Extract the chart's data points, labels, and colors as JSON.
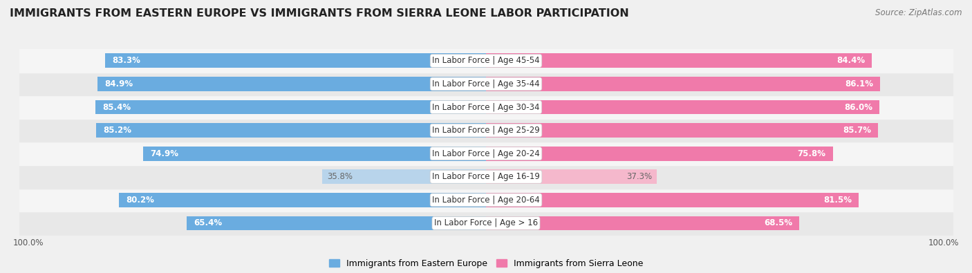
{
  "title": "IMMIGRANTS FROM EASTERN EUROPE VS IMMIGRANTS FROM SIERRA LEONE LABOR PARTICIPATION",
  "source": "Source: ZipAtlas.com",
  "categories": [
    "In Labor Force | Age > 16",
    "In Labor Force | Age 20-64",
    "In Labor Force | Age 16-19",
    "In Labor Force | Age 20-24",
    "In Labor Force | Age 25-29",
    "In Labor Force | Age 30-34",
    "In Labor Force | Age 35-44",
    "In Labor Force | Age 45-54"
  ],
  "eastern_europe": [
    65.4,
    80.2,
    35.8,
    74.9,
    85.2,
    85.4,
    84.9,
    83.3
  ],
  "sierra_leone": [
    68.5,
    81.5,
    37.3,
    75.8,
    85.7,
    86.0,
    86.1,
    84.4
  ],
  "eastern_europe_color": "#6aace0",
  "eastern_europe_color_light": "#b8d4eb",
  "sierra_leone_color": "#f07aaa",
  "sierra_leone_color_light": "#f5b8cc",
  "background_color": "#f0f0f0",
  "row_bg_colors": [
    "#e8e8e8",
    "#f5f5f5"
  ],
  "max_value": 100.0,
  "title_fontsize": 11.5,
  "label_fontsize": 8.5,
  "value_fontsize": 8.5,
  "tick_fontsize": 8.5,
  "source_fontsize": 8.5,
  "legend_fontsize": 9
}
